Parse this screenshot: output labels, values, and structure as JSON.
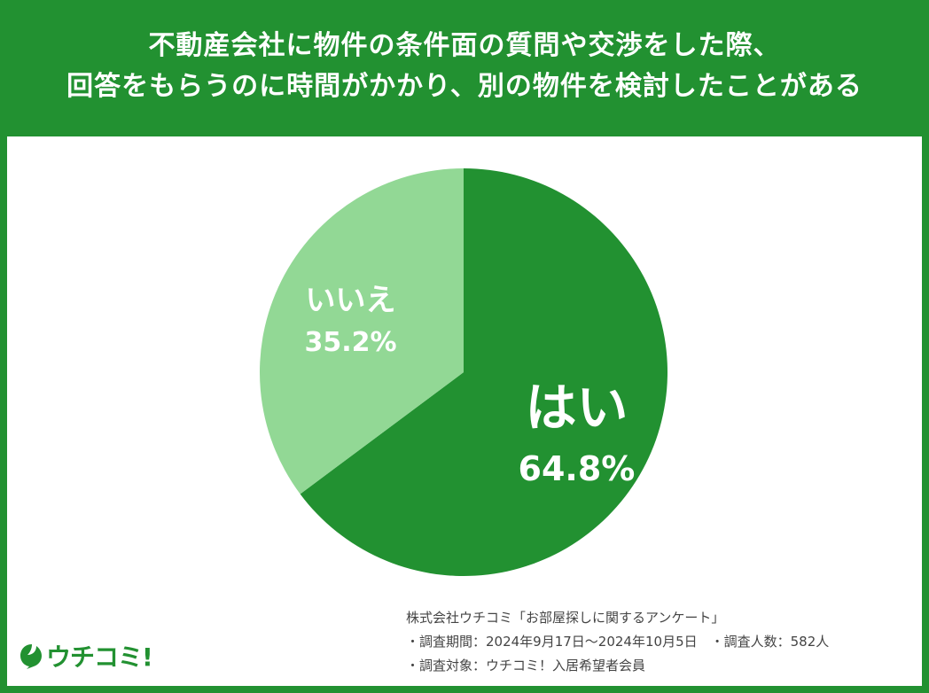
{
  "header": {
    "line1": "不動産会社に物件の条件面の質問や交渉をした際、",
    "line2": "回答をもらうのに時間がかかり、別の物件を検討したことがある"
  },
  "chart_data": {
    "type": "pie",
    "slices": [
      {
        "label": "はい",
        "value": 64.8,
        "value_label": "64.8%",
        "color": "#229131"
      },
      {
        "label": "いいえ",
        "value": 35.2,
        "value_label": "35.2%",
        "color": "#92d895"
      }
    ],
    "start": "12 o'clock",
    "direction": "clockwise"
  },
  "footer": {
    "survey": "株式会社ウチコミ「お部屋探しに関するアンケート」",
    "period": "・調査期間：2024年9月17日〜2024年10月5日　・調査人数：582人",
    "target": "・調査対象：ウチコミ！入居希望者会員"
  },
  "logo": {
    "text": "ウチコミ!",
    "color": "#229131"
  }
}
